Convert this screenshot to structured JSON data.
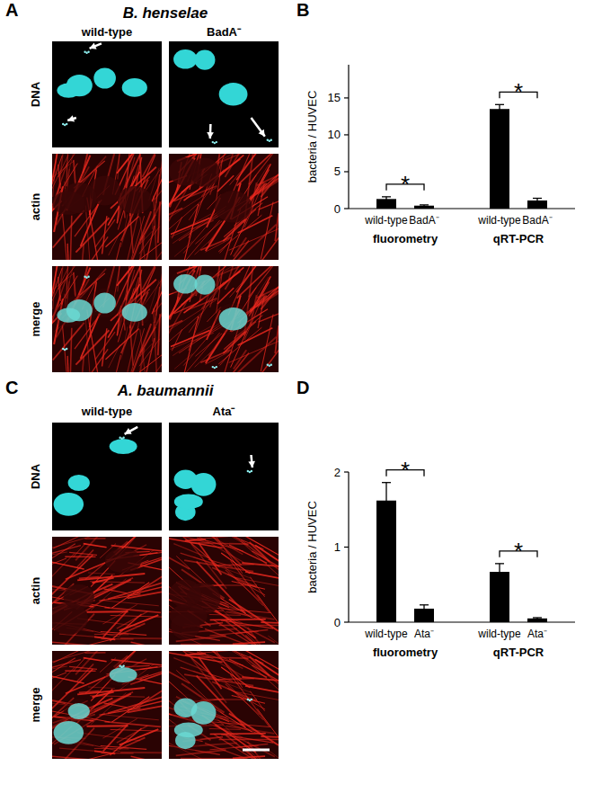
{
  "panels": [
    {
      "letter": "A",
      "title": "B. henselae",
      "columns": [
        "wild-type",
        "BadA⁻"
      ],
      "rows": [
        "DNA",
        "actin",
        "merge"
      ]
    },
    {
      "letter": "C",
      "title": "A. baumannii",
      "columns": [
        "wild-type",
        "Ata⁻"
      ],
      "rows": [
        "DNA",
        "actin",
        "merge"
      ]
    }
  ],
  "chart_data": [
    {
      "type": "bar",
      "panel": "B",
      "y_label": "bacteria / HUVEC",
      "categories": [
        "wild-type",
        "BadA⁻",
        "wild-type",
        "BadA⁻"
      ],
      "groups": [
        {
          "label": "fluorometry",
          "from": 0,
          "to": 1
        },
        {
          "label": "qRT-PCR",
          "from": 2,
          "to": 3
        }
      ],
      "values": [
        1.3,
        0.4,
        13.5,
        1.1
      ],
      "errors": [
        0.3,
        0.1,
        0.6,
        0.3
      ],
      "color": "#000000",
      "ylim": [
        0,
        19.5
      ],
      "yticks": [
        0,
        5,
        10,
        15
      ],
      "annotations": [
        {
          "label": "*",
          "from": 0,
          "to": 1
        },
        {
          "label": "*",
          "from": 2,
          "to": 3
        }
      ]
    },
    {
      "type": "bar",
      "panel": "D",
      "y_label": "bacteria / HUVEC",
      "categories": [
        "wild-type",
        "Ata⁻",
        "wild-type",
        "Ata⁻"
      ],
      "groups": [
        {
          "label": "fluorometry",
          "from": 0,
          "to": 1
        },
        {
          "label": "qRT-PCR",
          "from": 2,
          "to": 3
        }
      ],
      "values": [
        1.62,
        0.18,
        0.67,
        0.05
      ],
      "errors": [
        0.24,
        0.05,
        0.11,
        0.01
      ],
      "color": "#000000",
      "ylim": [
        0,
        2
      ],
      "yticks": [
        0,
        1,
        2
      ],
      "annotations": [
        {
          "label": "*",
          "from": 0,
          "to": 1
        },
        {
          "label": "*",
          "from": 2,
          "to": 3
        }
      ]
    }
  ]
}
